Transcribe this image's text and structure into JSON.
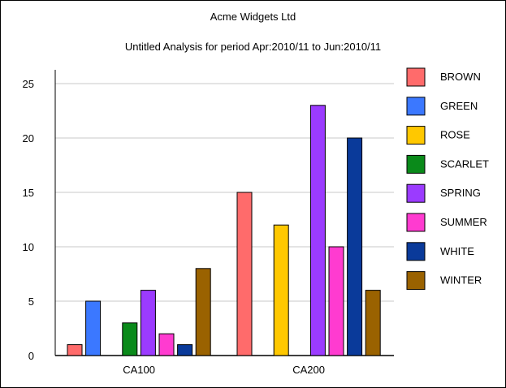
{
  "title": "Acme Widgets Ltd",
  "subtitle": "Untitled Analysis for period Apr:2010/11 to Jun:2010/11",
  "chart_data": {
    "type": "bar",
    "categories": [
      "CA100",
      "CA200"
    ],
    "ylim": [
      0,
      25
    ],
    "yticks": [
      0,
      5,
      10,
      15,
      20,
      25
    ],
    "grid": true,
    "legend_position": "right",
    "series": [
      {
        "name": "BROWN",
        "color": "#ff6b6b",
        "values": [
          1,
          15
        ]
      },
      {
        "name": "GREEN",
        "color": "#3b78ff",
        "values": [
          5,
          0
        ]
      },
      {
        "name": "ROSE",
        "color": "#ffc800",
        "values": [
          0,
          12
        ]
      },
      {
        "name": "SCARLET",
        "color": "#0a8a1a",
        "values": [
          3,
          0
        ]
      },
      {
        "name": "SPRING",
        "color": "#9b3bff",
        "values": [
          6,
          23
        ]
      },
      {
        "name": "SUMMER",
        "color": "#ff3bd0",
        "values": [
          2,
          10
        ]
      },
      {
        "name": "WHITE",
        "color": "#0a3a9a",
        "values": [
          1,
          20
        ]
      },
      {
        "name": "WINTER",
        "color": "#9a6200",
        "values": [
          8,
          6
        ]
      }
    ]
  }
}
